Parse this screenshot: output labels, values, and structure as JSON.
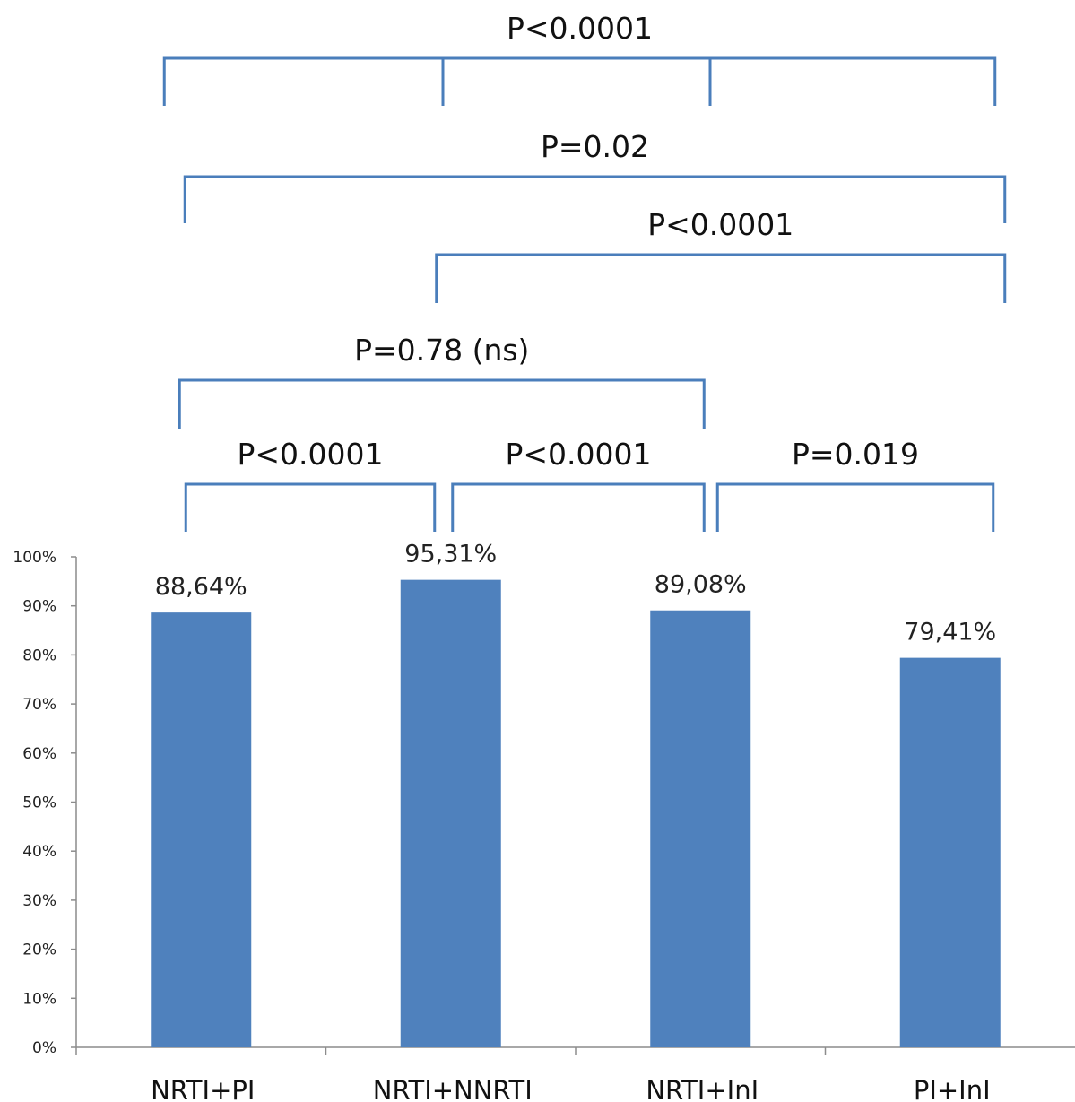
{
  "chart_data": {
    "type": "bar",
    "categories": [
      "NRTI+PI",
      "NRTI+NNRTI",
      "NRTI+InI",
      "PI+InI"
    ],
    "values": [
      88.64,
      95.31,
      89.08,
      79.41
    ],
    "value_labels": [
      "88,64%",
      "95,31%",
      "89,08%",
      "79,41%"
    ],
    "ylim": [
      0,
      100
    ],
    "yticks": [
      "0%",
      "10%",
      "20%",
      "30%",
      "40%",
      "50%",
      "60%",
      "70%",
      "80%",
      "90%",
      "100%"
    ],
    "bar_color": "#4f81bd",
    "bracket_color": "#4a7ebb",
    "grid": false,
    "comparisons": [
      {
        "label": "P<0.0001",
        "groups": [
          "NRTI+PI",
          "NRTI+NNRTI",
          "NRTI+InI",
          "PI+InI"
        ]
      },
      {
        "label": "P=0.02",
        "groups": [
          "NRTI+PI",
          "PI+InI"
        ]
      },
      {
        "label": "P<0.0001",
        "groups": [
          "NRTI+NNRTI",
          "PI+InI"
        ]
      },
      {
        "label": "P=0.78 (ns)",
        "groups": [
          "NRTI+PI",
          "NRTI+InI"
        ]
      },
      {
        "label": "P<0.0001",
        "groups": [
          "NRTI+PI",
          "NRTI+NNRTI"
        ]
      },
      {
        "label": "P<0.0001",
        "groups": [
          "NRTI+NNRTI",
          "NRTI+InI"
        ]
      },
      {
        "label": "P=0.019",
        "groups": [
          "NRTI+InI",
          "PI+InI"
        ]
      }
    ]
  }
}
